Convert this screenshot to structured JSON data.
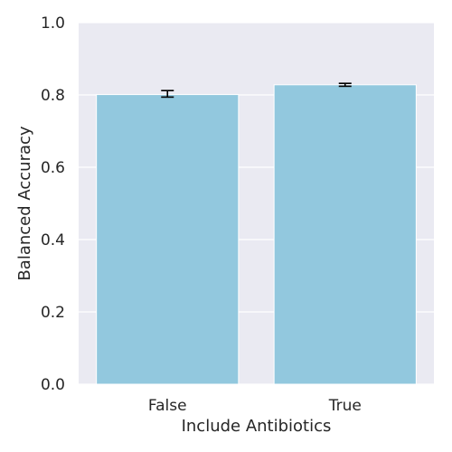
{
  "chart_data": {
    "type": "bar",
    "title": "",
    "xlabel": "Include Antibiotics",
    "ylabel": "Balanced Accuracy",
    "categories": [
      "False",
      "True"
    ],
    "values": [
      0.801,
      0.828
    ],
    "error_bars": [
      {
        "low": 0.794,
        "high": 0.812
      },
      {
        "low": 0.824,
        "high": 0.832
      }
    ],
    "ylim": [
      0,
      1.0
    ],
    "yticks": [
      0.0,
      0.2,
      0.4,
      0.6,
      0.8,
      1.0
    ],
    "ytick_labels": [
      "0.0",
      "0.2",
      "0.4",
      "0.6",
      "0.8",
      "1.0"
    ],
    "grid": true,
    "colors": {
      "bar": "#92c8de",
      "plot_background": "#eaeaf2",
      "grid": "#ffffff",
      "error_bar": "#000000",
      "text": "#262626"
    }
  }
}
